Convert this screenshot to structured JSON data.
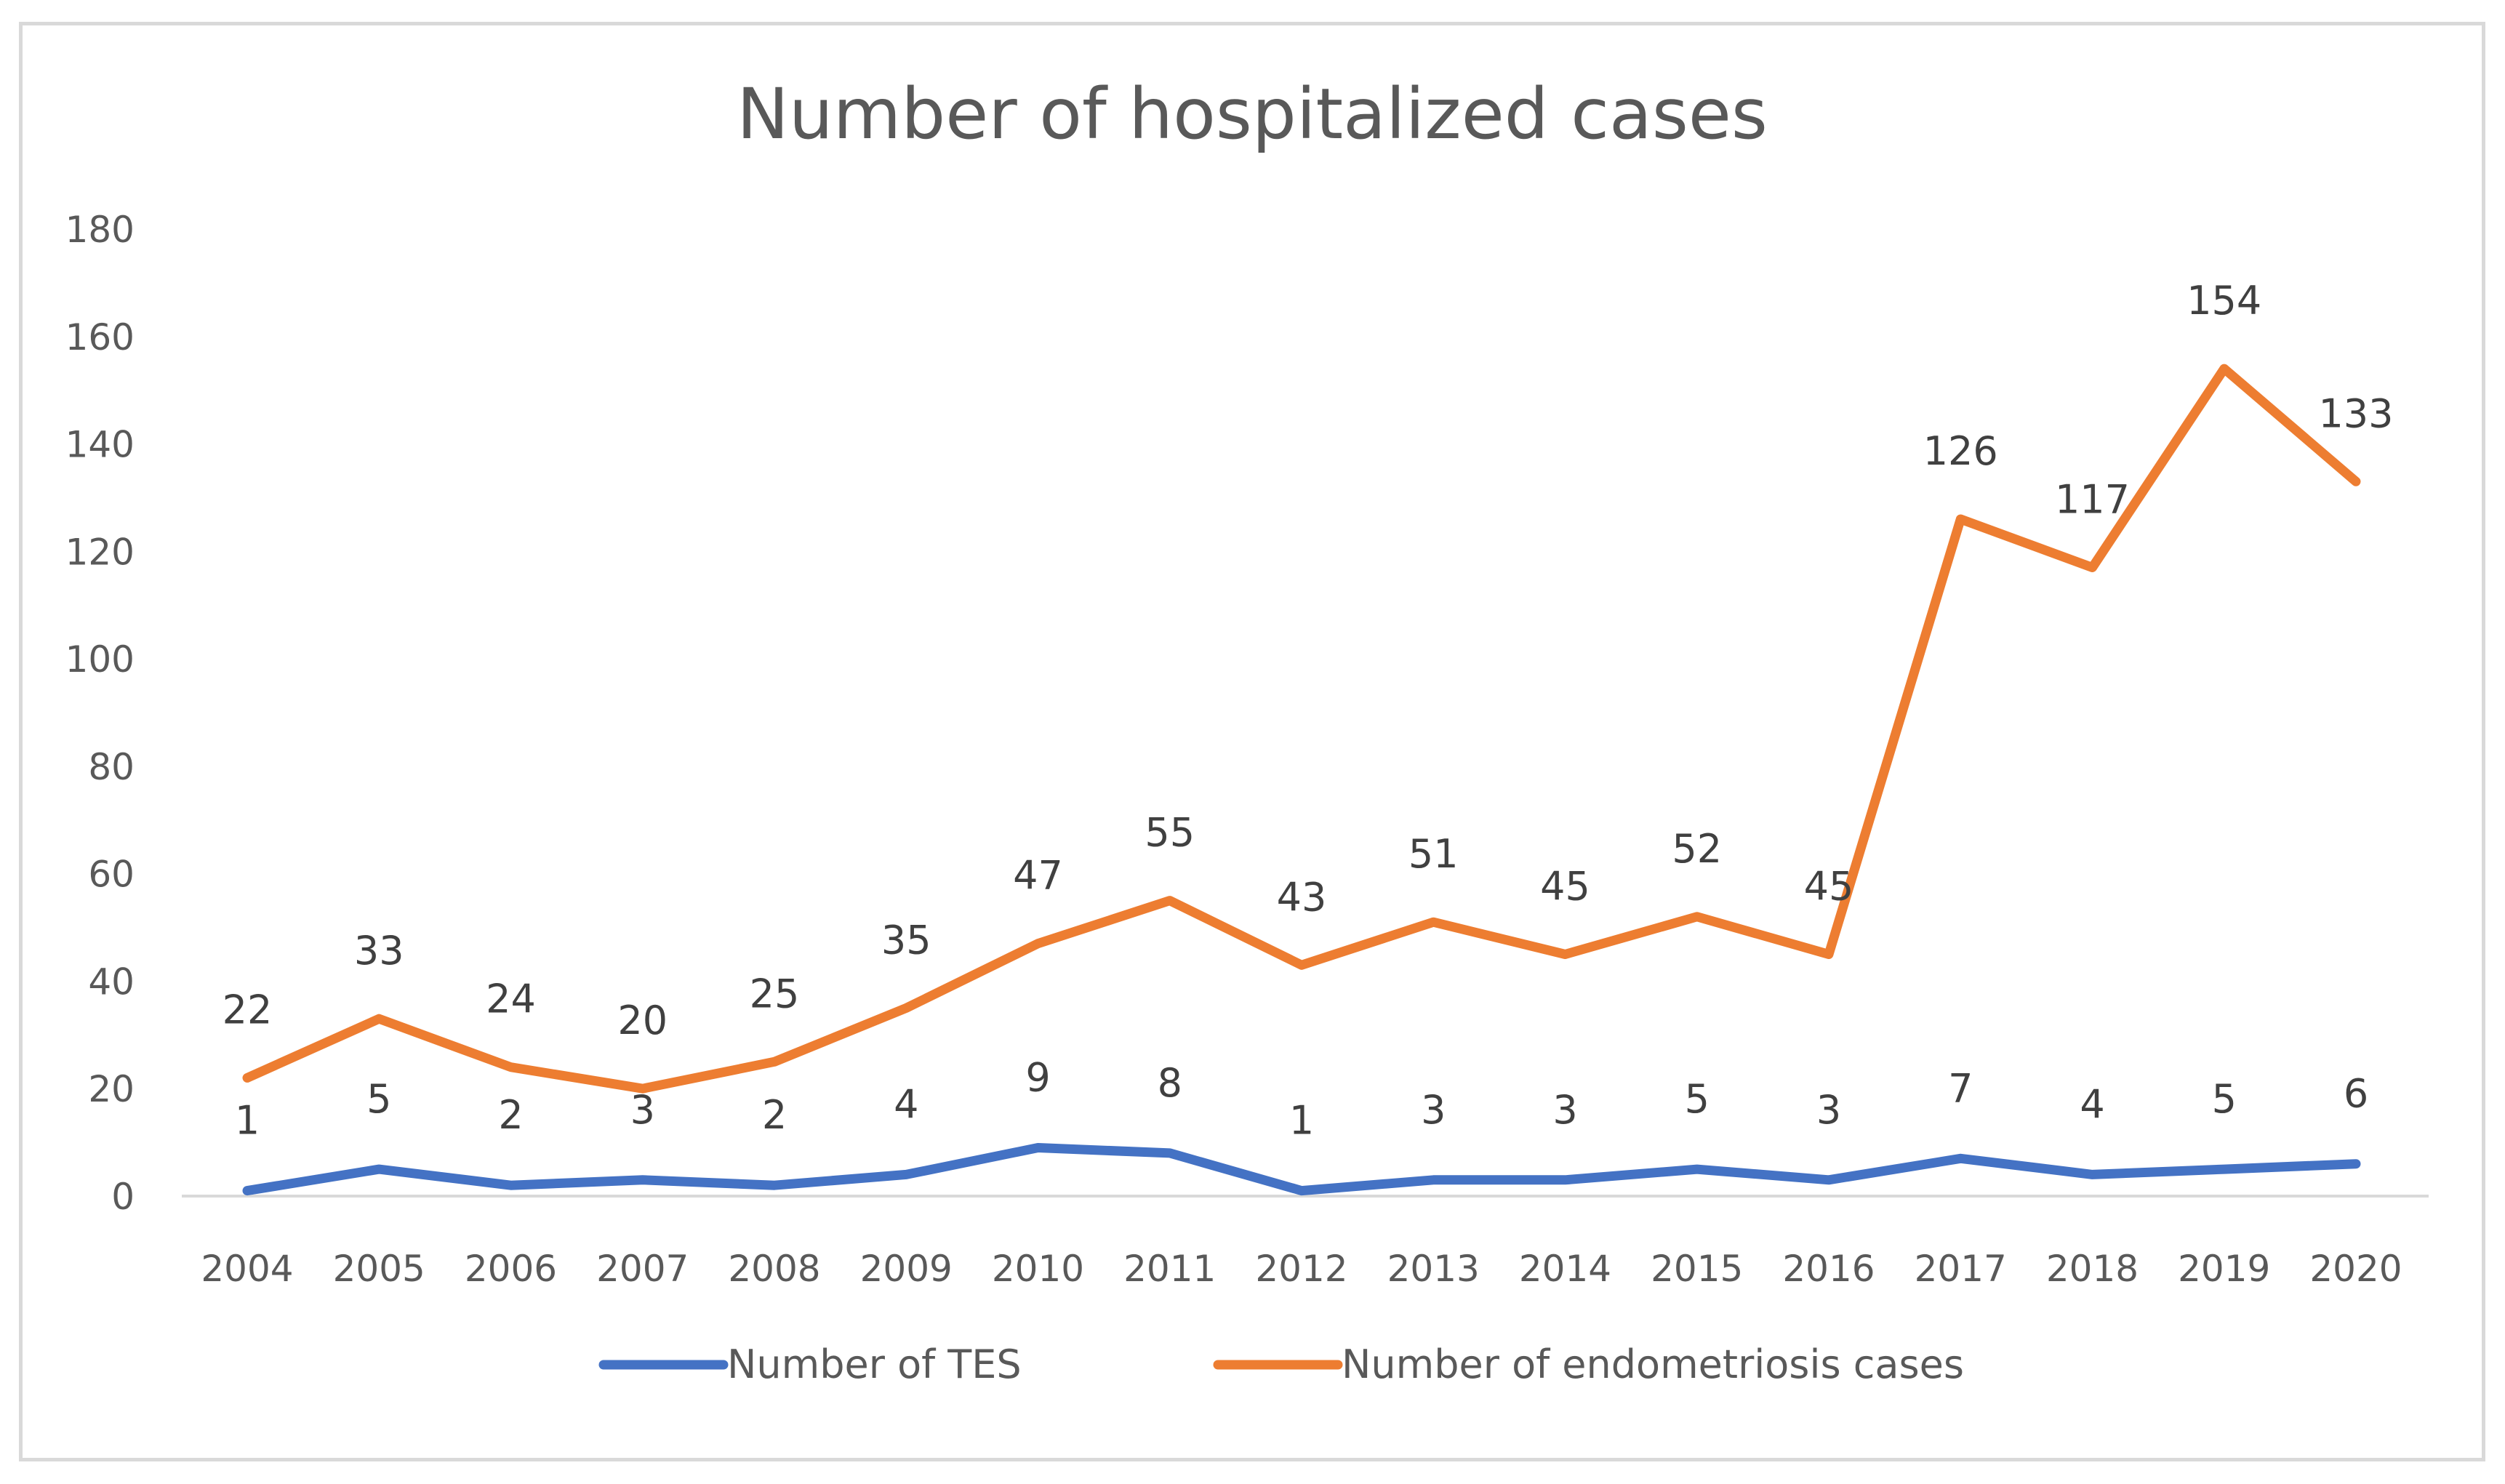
{
  "chart_data": {
    "type": "line",
    "title": "Number of hospitalized cases",
    "xlabel": "",
    "ylabel": "",
    "ylim": [
      0,
      180
    ],
    "yticks": [
      0,
      20,
      40,
      60,
      80,
      100,
      120,
      140,
      160,
      180
    ],
    "categories": [
      "2004",
      "2005",
      "2006",
      "2007",
      "2008",
      "2009",
      "2010",
      "2011",
      "2012",
      "2013",
      "2014",
      "2015",
      "2016",
      "2017",
      "2018",
      "2019",
      "2020"
    ],
    "legend_position": "bottom",
    "grid": false,
    "series": [
      {
        "name": "Number of TES",
        "color": "#4472c4",
        "values": [
          1,
          5,
          2,
          3,
          2,
          4,
          9,
          8,
          1,
          3,
          3,
          5,
          3,
          7,
          4,
          5,
          6
        ],
        "labels": [
          "1",
          "5",
          "2",
          "3",
          "2",
          "4",
          "9",
          "8",
          "1",
          "3",
          "3",
          "5",
          "3",
          "7",
          "4",
          "5",
          "6"
        ]
      },
      {
        "name": "Number of endometriosis cases",
        "color": "#ed7d31",
        "values": [
          22,
          33,
          24,
          20,
          25,
          35,
          47,
          55,
          43,
          51,
          45,
          52,
          45,
          126,
          117,
          154,
          133
        ],
        "labels": [
          "22",
          "33",
          "24",
          "20",
          "25",
          "35",
          "47",
          "55",
          "43",
          "51",
          "45",
          "52",
          "45",
          "126",
          "117",
          "154",
          "133"
        ]
      }
    ]
  }
}
